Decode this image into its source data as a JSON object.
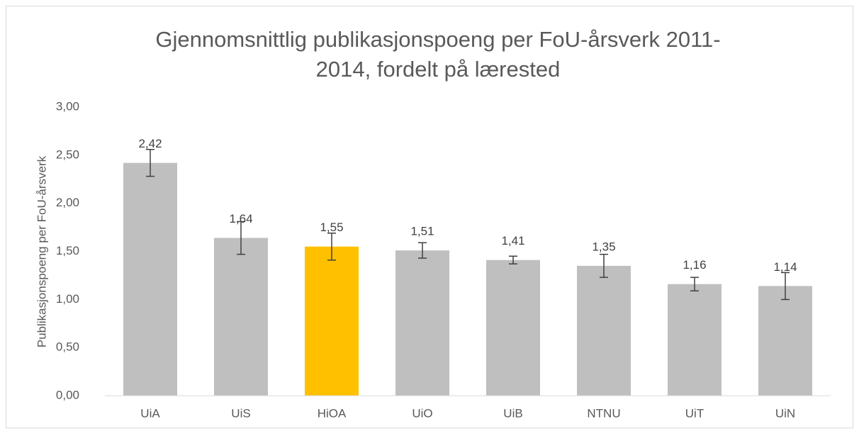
{
  "chart_data": {
    "type": "bar",
    "title": [
      "Gjennomsnittlig publikasjonspoeng per FoU-årsverk 2011-",
      "2014, fordelt på lærested"
    ],
    "ylabel": "Publikasjonspoeng per FoU-årsverk",
    "categories": [
      "UiA",
      "UiS",
      "HiOA",
      "UiO",
      "UiB",
      "NTNU",
      "UiT",
      "UiN"
    ],
    "values": [
      2.42,
      1.64,
      1.55,
      1.51,
      1.41,
      1.35,
      1.16,
      1.14
    ],
    "value_labels": [
      "2,42",
      "1,64",
      "1,55",
      "1,51",
      "1,41",
      "1,35",
      "1,16",
      "1,14"
    ],
    "errors": [
      0.14,
      0.17,
      0.14,
      0.08,
      0.04,
      0.12,
      0.07,
      0.14
    ],
    "colors": [
      "#bfbfbf",
      "#bfbfbf",
      "#ffc000",
      "#bfbfbf",
      "#bfbfbf",
      "#bfbfbf",
      "#bfbfbf",
      "#bfbfbf"
    ],
    "ylim": [
      0,
      3
    ],
    "yticks": [
      {
        "value": 0,
        "label": "0,00"
      },
      {
        "value": 0.5,
        "label": "0,50"
      },
      {
        "value": 1,
        "label": "1,00"
      },
      {
        "value": 1.5,
        "label": "1,50"
      },
      {
        "value": 2,
        "label": "2,00"
      },
      {
        "value": 2.5,
        "label": "2,50"
      },
      {
        "value": 3,
        "label": "3,00"
      }
    ],
    "grid": false
  }
}
